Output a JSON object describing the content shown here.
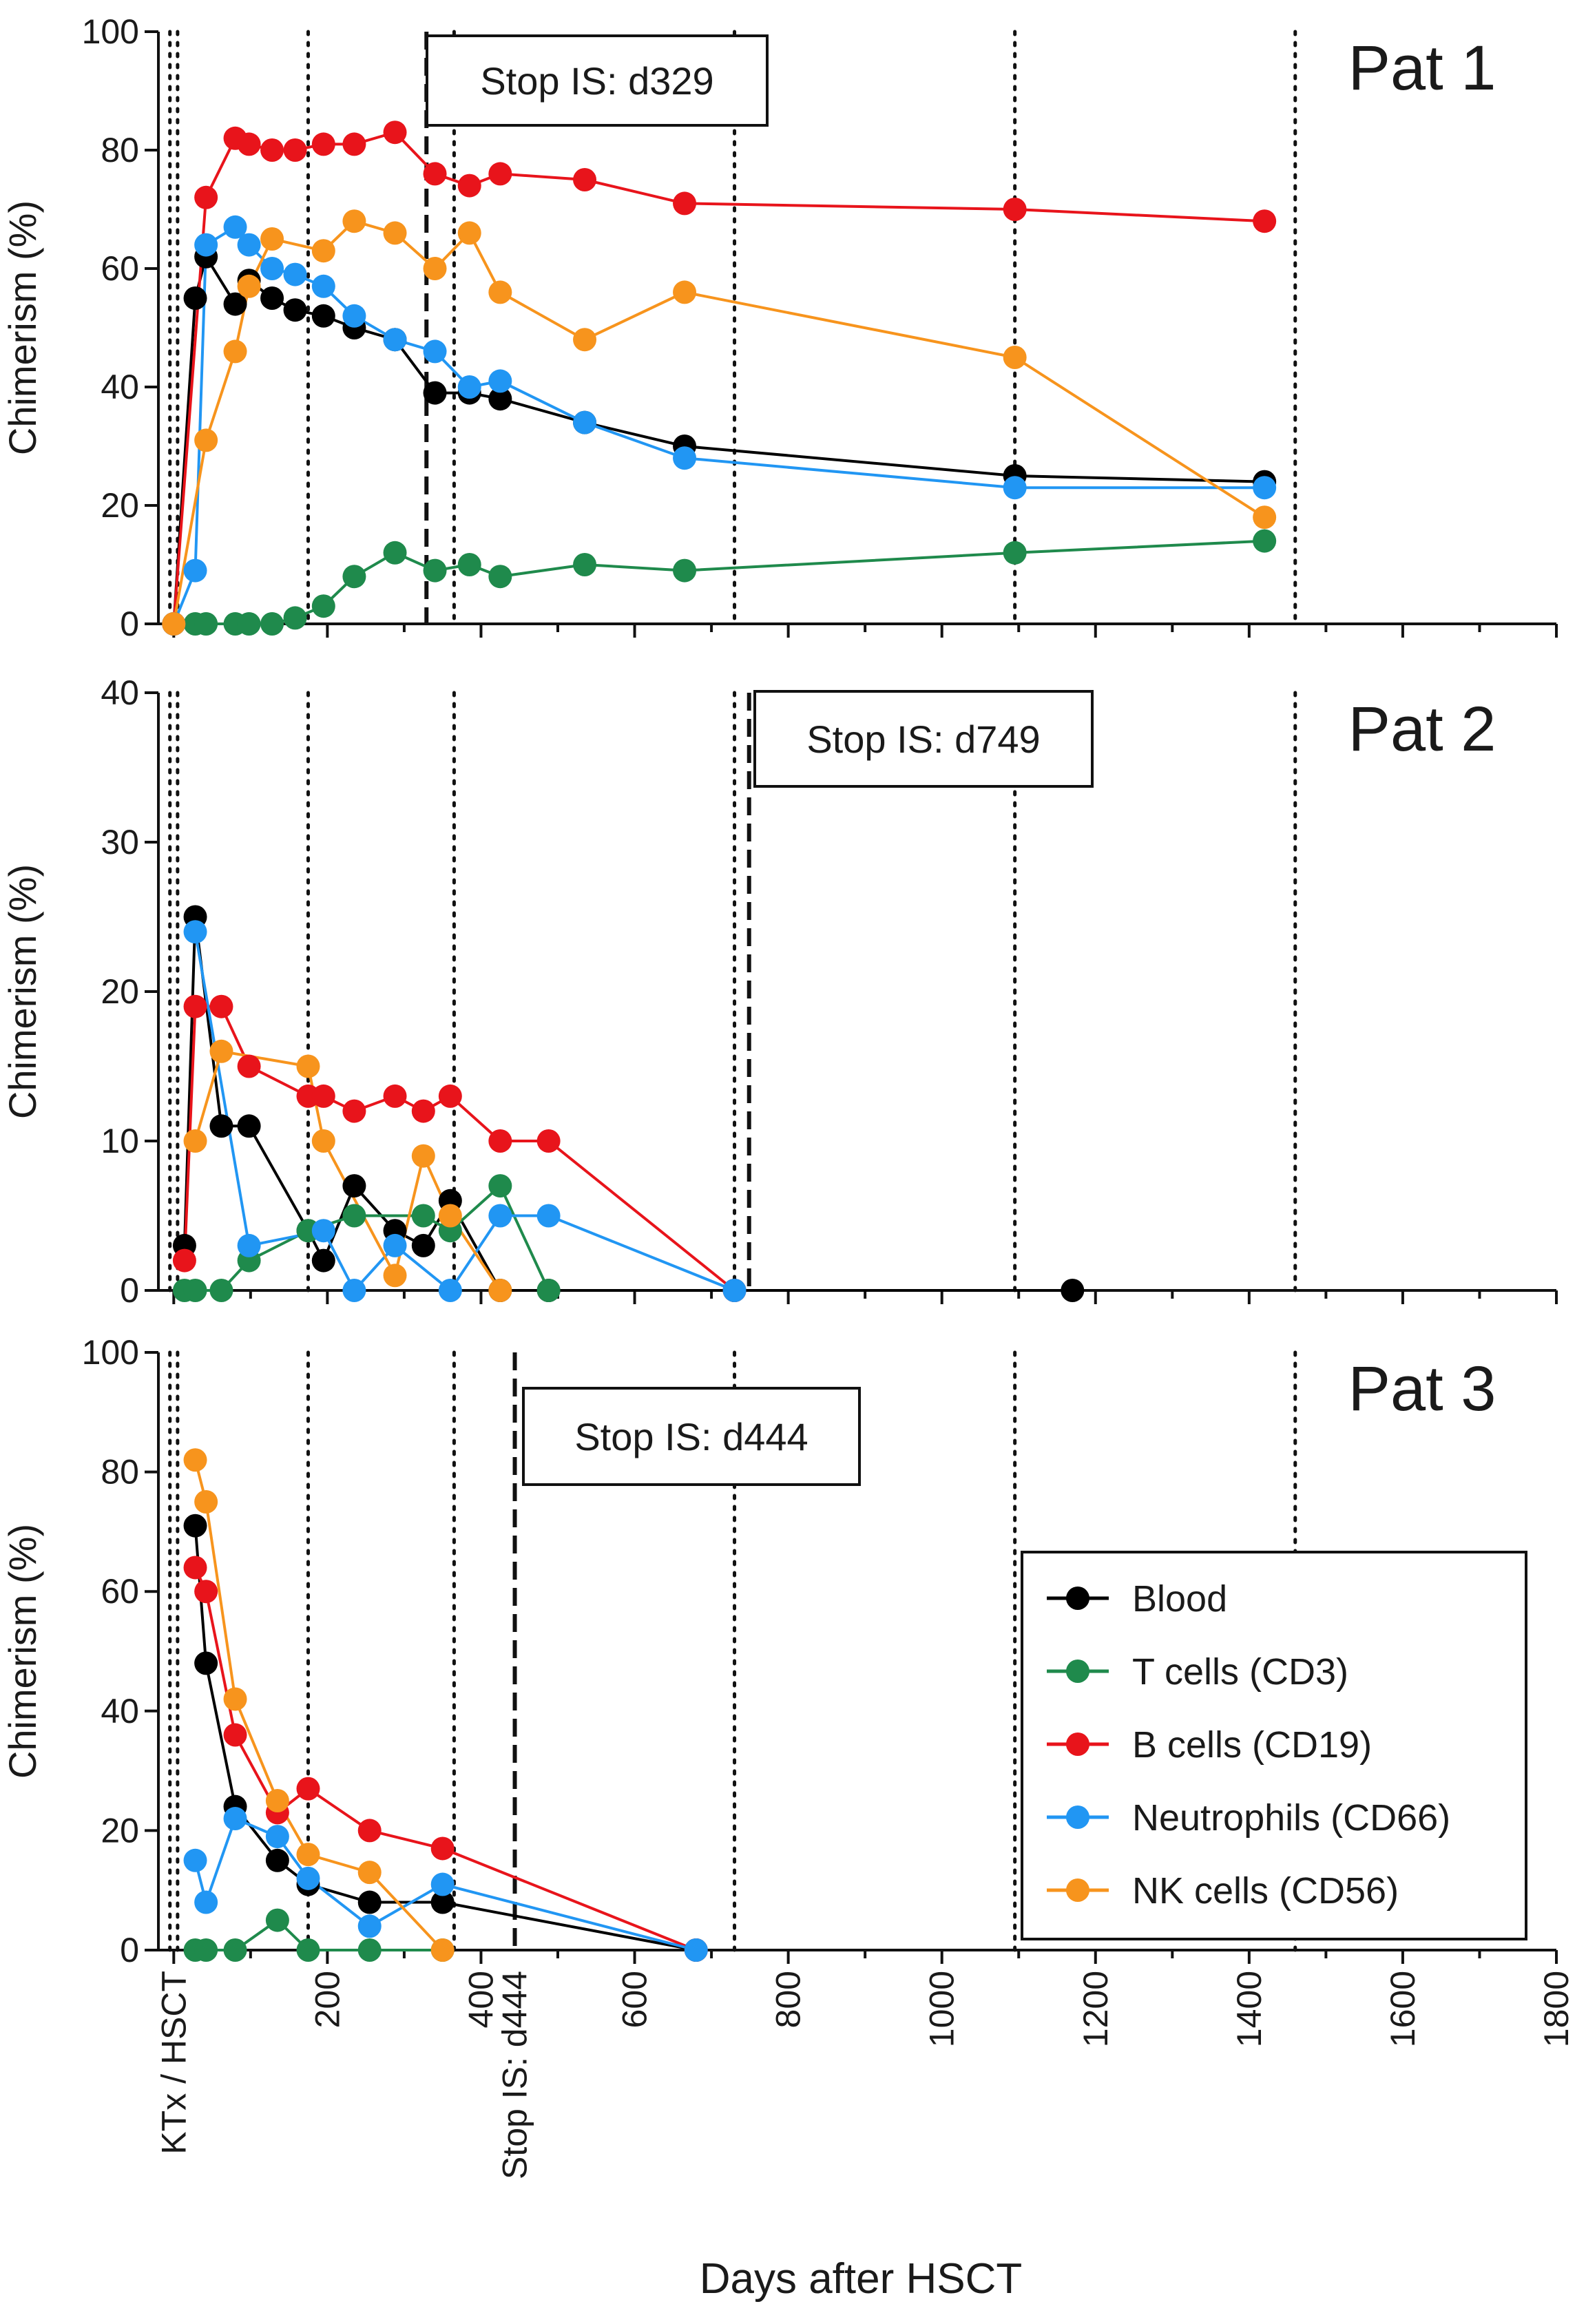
{
  "figure": {
    "x_axis_title": "Days after HSCT",
    "x_ticks": [
      200,
      400,
      600,
      800,
      1000,
      1200,
      1400,
      1600,
      1800
    ],
    "x_range": [
      -20,
      1800
    ],
    "x_special_labels": [
      {
        "text": "KTx / HSCT",
        "x": 0
      },
      {
        "text": "Stop IS: d444",
        "x": 444
      }
    ]
  },
  "legend": [
    {
      "label": "Blood",
      "color": "#000000"
    },
    {
      "label": "T cells (CD3)",
      "color": "#1f8a4c"
    },
    {
      "label": "B cells (CD19)",
      "color": "#e8141b"
    },
    {
      "label": "Neutrophils (CD66)",
      "color": "#2196f3"
    },
    {
      "label": "NK cells (CD56)",
      "color": "#f7941d"
    }
  ],
  "chart_data": [
    {
      "type": "line",
      "panel": "Pat 1",
      "title": "Pat 1",
      "xlabel": "Days after HSCT",
      "ylabel": "Chimerism (%)",
      "xlim": [
        -20,
        1800
      ],
      "ylim": [
        0,
        100
      ],
      "yticks": [
        0,
        20,
        40,
        60,
        80,
        100
      ],
      "stop_label": "Stop IS: d329",
      "stop_day": 329,
      "dotted_lines": [
        -5,
        5,
        175,
        365,
        730,
        1095,
        1460
      ],
      "series": [
        {
          "name": "Blood",
          "color": "#000000",
          "points": [
            [
              0,
              0
            ],
            [
              28,
              55
            ],
            [
              42,
              62
            ],
            [
              80,
              54
            ],
            [
              98,
              58
            ],
            [
              128,
              55
            ],
            [
              158,
              53
            ],
            [
              195,
              52
            ],
            [
              235,
              50
            ],
            [
              288,
              48
            ],
            [
              340,
              39
            ],
            [
              385,
              39
            ],
            [
              425,
              38
            ],
            [
              535,
              34
            ],
            [
              665,
              30
            ],
            [
              1095,
              25
            ],
            [
              1420,
              24
            ]
          ]
        },
        {
          "name": "T cells (CD3)",
          "color": "#1f8a4c",
          "points": [
            [
              0,
              0
            ],
            [
              28,
              0
            ],
            [
              42,
              0
            ],
            [
              80,
              0
            ],
            [
              98,
              0
            ],
            [
              128,
              0
            ],
            [
              158,
              1
            ],
            [
              195,
              3
            ],
            [
              235,
              8
            ],
            [
              288,
              12
            ],
            [
              340,
              9
            ],
            [
              385,
              10
            ],
            [
              425,
              8
            ],
            [
              535,
              10
            ],
            [
              665,
              9
            ],
            [
              1095,
              12
            ],
            [
              1420,
              14
            ]
          ]
        },
        {
          "name": "B cells (CD19)",
          "color": "#e8141b",
          "points": [
            [
              0,
              0
            ],
            [
              42,
              72
            ],
            [
              80,
              82
            ],
            [
              98,
              81
            ],
            [
              128,
              80
            ],
            [
              158,
              80
            ],
            [
              195,
              81
            ],
            [
              235,
              81
            ],
            [
              288,
              83
            ],
            [
              340,
              76
            ],
            [
              385,
              74
            ],
            [
              425,
              76
            ],
            [
              535,
              75
            ],
            [
              665,
              71
            ],
            [
              1095,
              70
            ],
            [
              1420,
              68
            ]
          ]
        },
        {
          "name": "Neutrophils (CD66)",
          "color": "#2196f3",
          "points": [
            [
              0,
              0
            ],
            [
              28,
              9
            ],
            [
              42,
              64
            ],
            [
              80,
              67
            ],
            [
              98,
              64
            ],
            [
              128,
              60
            ],
            [
              158,
              59
            ],
            [
              195,
              57
            ],
            [
              235,
              52
            ],
            [
              288,
              48
            ],
            [
              340,
              46
            ],
            [
              385,
              40
            ],
            [
              425,
              41
            ],
            [
              535,
              34
            ],
            [
              665,
              28
            ],
            [
              1095,
              23
            ],
            [
              1420,
              23
            ]
          ]
        },
        {
          "name": "NK cells (CD56)",
          "color": "#f7941d",
          "points": [
            [
              0,
              0
            ],
            [
              42,
              31
            ],
            [
              80,
              46
            ],
            [
              98,
              57
            ],
            [
              128,
              65
            ],
            [
              195,
              63
            ],
            [
              235,
              68
            ],
            [
              288,
              66
            ],
            [
              340,
              60
            ],
            [
              385,
              66
            ],
            [
              425,
              56
            ],
            [
              535,
              48
            ],
            [
              665,
              56
            ],
            [
              1095,
              45
            ],
            [
              1420,
              18
            ]
          ]
        }
      ]
    },
    {
      "type": "line",
      "panel": "Pat 2",
      "title": "Pat 2",
      "xlabel": "Days after HSCT",
      "ylabel": "Chimerism (%)",
      "xlim": [
        -20,
        1800
      ],
      "ylim": [
        0,
        40
      ],
      "yticks": [
        0,
        10,
        20,
        30,
        40
      ],
      "stop_label": "Stop IS: d749",
      "stop_day": 749,
      "dotted_lines": [
        -5,
        5,
        175,
        365,
        730,
        1095,
        1460
      ],
      "series": [
        {
          "name": "Blood",
          "color": "#000000",
          "points": [
            [
              14,
              3
            ],
            [
              28,
              25
            ],
            [
              62,
              11
            ],
            [
              98,
              11
            ],
            [
              175,
              4
            ],
            [
              195,
              2
            ],
            [
              235,
              7
            ],
            [
              288,
              4
            ],
            [
              325,
              3
            ],
            [
              360,
              6
            ],
            [
              425,
              0
            ],
            [
              488,
              0
            ],
            [
              730,
              0
            ],
            [
              1170,
              0
            ]
          ]
        },
        {
          "name": "T cells (CD3)",
          "color": "#1f8a4c",
          "points": [
            [
              14,
              0
            ],
            [
              28,
              0
            ],
            [
              62,
              0
            ],
            [
              98,
              2
            ],
            [
              175,
              4
            ],
            [
              235,
              5
            ],
            [
              325,
              5
            ],
            [
              360,
              4
            ],
            [
              425,
              7
            ],
            [
              488,
              0
            ]
          ]
        },
        {
          "name": "B cells (CD19)",
          "color": "#e8141b",
          "points": [
            [
              14,
              2
            ],
            [
              28,
              19
            ],
            [
              62,
              19
            ],
            [
              98,
              15
            ],
            [
              175,
              13
            ],
            [
              195,
              13
            ],
            [
              235,
              12
            ],
            [
              288,
              13
            ],
            [
              325,
              12
            ],
            [
              360,
              13
            ],
            [
              425,
              10
            ],
            [
              488,
              10
            ],
            [
              730,
              0
            ]
          ]
        },
        {
          "name": "Neutrophils (CD66)",
          "color": "#2196f3",
          "points": [
            [
              28,
              24
            ],
            [
              98,
              3
            ],
            [
              195,
              4
            ],
            [
              235,
              0
            ],
            [
              288,
              3
            ],
            [
              360,
              0
            ],
            [
              425,
              5
            ],
            [
              488,
              5
            ],
            [
              730,
              0
            ]
          ]
        },
        {
          "name": "NK cells (CD56)",
          "color": "#f7941d",
          "points": [
            [
              28,
              10
            ],
            [
              62,
              16
            ],
            [
              175,
              15
            ],
            [
              195,
              10
            ],
            [
              288,
              1
            ],
            [
              325,
              9
            ],
            [
              360,
              5
            ],
            [
              425,
              0
            ]
          ]
        }
      ]
    },
    {
      "type": "line",
      "panel": "Pat 3",
      "title": "Pat 3",
      "xlabel": "Days after HSCT",
      "ylabel": "Chimerism (%)",
      "xlim": [
        -20,
        1800
      ],
      "ylim": [
        0,
        100
      ],
      "yticks": [
        0,
        20,
        40,
        60,
        80,
        100
      ],
      "stop_label": "Stop IS: d444",
      "stop_day": 444,
      "dotted_lines": [
        -5,
        5,
        175,
        365,
        730,
        1095,
        1460
      ],
      "series": [
        {
          "name": "Blood",
          "color": "#000000",
          "points": [
            [
              28,
              71
            ],
            [
              42,
              48
            ],
            [
              80,
              24
            ],
            [
              135,
              15
            ],
            [
              175,
              11
            ],
            [
              255,
              8
            ],
            [
              350,
              8
            ],
            [
              680,
              0
            ]
          ]
        },
        {
          "name": "T cells (CD3)",
          "color": "#1f8a4c",
          "points": [
            [
              28,
              0
            ],
            [
              42,
              0
            ],
            [
              80,
              0
            ],
            [
              135,
              5
            ],
            [
              175,
              0
            ],
            [
              255,
              0
            ],
            [
              350,
              0
            ]
          ]
        },
        {
          "name": "B cells (CD19)",
          "color": "#e8141b",
          "points": [
            [
              28,
              64
            ],
            [
              42,
              60
            ],
            [
              80,
              36
            ],
            [
              135,
              23
            ],
            [
              175,
              27
            ],
            [
              255,
              20
            ],
            [
              350,
              17
            ],
            [
              680,
              0
            ]
          ]
        },
        {
          "name": "Neutrophils (CD66)",
          "color": "#2196f3",
          "points": [
            [
              28,
              15
            ],
            [
              42,
              8
            ],
            [
              80,
              22
            ],
            [
              135,
              19
            ],
            [
              175,
              12
            ],
            [
              255,
              4
            ],
            [
              350,
              11
            ],
            [
              680,
              0
            ]
          ]
        },
        {
          "name": "NK cells (CD56)",
          "color": "#f7941d",
          "points": [
            [
              28,
              82
            ],
            [
              42,
              75
            ],
            [
              80,
              42
            ],
            [
              135,
              25
            ],
            [
              175,
              16
            ],
            [
              255,
              13
            ],
            [
              350,
              0
            ]
          ]
        }
      ]
    }
  ]
}
